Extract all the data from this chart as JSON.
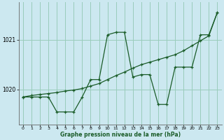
{
  "xlabel": "Graphe pression niveau de la mer (hPa)",
  "background_color": "#cce8f0",
  "grid_color": "#99ccbb",
  "line_color": "#1a5c28",
  "xlim": [
    -0.5,
    23.5
  ],
  "ylim": [
    1019.3,
    1021.75
  ],
  "yticks": [
    1020,
    1021
  ],
  "xticks": [
    0,
    1,
    2,
    3,
    4,
    5,
    6,
    7,
    8,
    9,
    10,
    11,
    12,
    13,
    14,
    15,
    16,
    17,
    18,
    19,
    20,
    21,
    22,
    23
  ],
  "series1_x": [
    0,
    1,
    2,
    3,
    4,
    5,
    6,
    7,
    8,
    9,
    10,
    11,
    12,
    13,
    14,
    15,
    16,
    17,
    18,
    19,
    20,
    21,
    22,
    23
  ],
  "series1_y": [
    1019.85,
    1019.85,
    1019.85,
    1019.85,
    1019.55,
    1019.55,
    1019.55,
    1019.85,
    1020.2,
    1020.2,
    1021.1,
    1021.15,
    1021.15,
    1020.25,
    1020.3,
    1020.3,
    1019.7,
    1019.7,
    1020.45,
    1020.45,
    1020.45,
    1021.1,
    1021.1,
    1021.55
  ],
  "series2_x": [
    0,
    1,
    2,
    3,
    4,
    5,
    6,
    7,
    8,
    9,
    10,
    11,
    12,
    13,
    14,
    15,
    16,
    17,
    18,
    19,
    20,
    21,
    22,
    23
  ],
  "series2_y": [
    1019.85,
    1019.88,
    1019.9,
    1019.92,
    1019.94,
    1019.97,
    1019.99,
    1020.02,
    1020.07,
    1020.12,
    1020.2,
    1020.28,
    1020.35,
    1020.43,
    1020.5,
    1020.55,
    1020.6,
    1020.65,
    1020.7,
    1020.78,
    1020.88,
    1020.98,
    1021.08,
    1021.55
  ]
}
